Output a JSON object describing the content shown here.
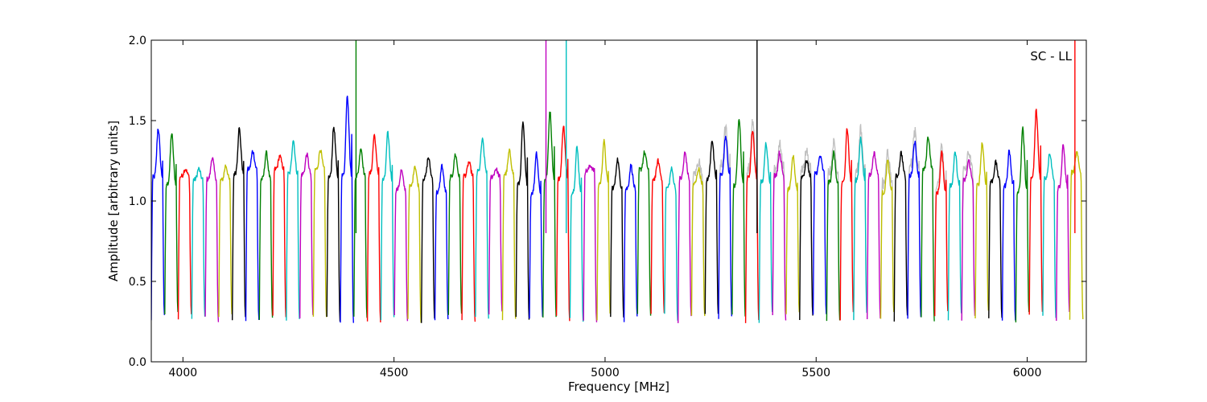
{
  "chart_data": {
    "type": "line",
    "title": "",
    "annotation": "SC - LL",
    "xlabel": "Frequency [MHz]",
    "ylabel": "Amplitude [arbitrary units]",
    "xlim": [
      3925,
      6140
    ],
    "ylim": [
      0.0,
      2.0
    ],
    "xticks": [
      4000,
      4500,
      5000,
      5500,
      6000
    ],
    "yticks": [
      0.0,
      0.5,
      1.0,
      1.5,
      2.0
    ],
    "xtick_labels": [
      "4000",
      "4500",
      "5000",
      "5500",
      "6000"
    ],
    "ytick_labels": [
      "0.0",
      "0.5",
      "1.0",
      "1.5",
      "2.0"
    ],
    "grid": false,
    "background_series_color": "#bfbfbf",
    "color_cycle": [
      "#0000ff",
      "#008000",
      "#ff0000",
      "#00bfbf",
      "#bf00bf",
      "#bfbf00",
      "#000000"
    ],
    "spw_width": 32,
    "spw_start": 3925,
    "spw_count": 69,
    "spw_peaks": [
      1.45,
      1.42,
      1.2,
      1.2,
      1.27,
      1.22,
      1.45,
      1.31,
      1.3,
      1.28,
      1.38,
      1.29,
      1.32,
      1.46,
      1.66,
      1.33,
      1.41,
      1.42,
      1.19,
      1.22,
      1.27,
      1.22,
      1.29,
      1.24,
      1.38,
      1.2,
      1.31,
      1.48,
      1.3,
      1.56,
      1.47,
      1.33,
      1.22,
      1.37,
      1.26,
      1.22,
      1.3,
      1.25,
      1.2,
      1.3,
      1.2,
      1.38,
      1.4,
      1.52,
      1.44,
      1.36,
      1.3,
      1.28,
      1.25,
      1.28,
      1.3,
      1.45,
      1.39,
      1.3,
      1.25,
      1.3,
      1.37,
      1.4,
      1.3,
      1.3,
      1.25,
      1.36,
      1.24,
      1.31,
      1.45,
      1.56,
      1.3,
      1.34,
      1.3
    ],
    "spikes": [
      {
        "x": 4410,
        "value": 2.0,
        "color": "#008000"
      },
      {
        "x": 4860,
        "value": 2.0,
        "color": "#bf00bf"
      },
      {
        "x": 4908,
        "value": 2.0,
        "color": "#00bfbf"
      },
      {
        "x": 5360,
        "value": 2.0,
        "color": "#000000"
      },
      {
        "x": 6113,
        "value": 2.0,
        "color": "#ff0000"
      }
    ]
  }
}
